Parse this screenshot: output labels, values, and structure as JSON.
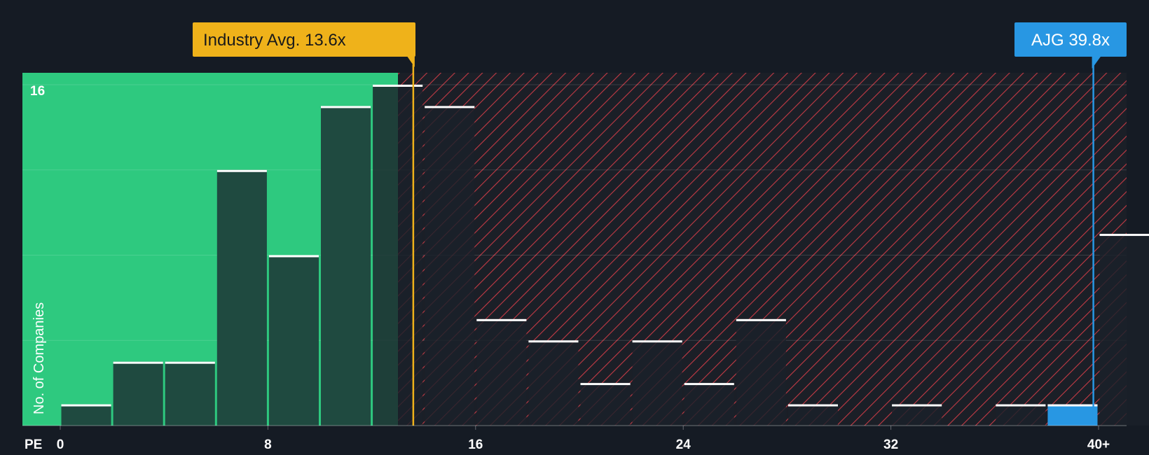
{
  "chart_data": {
    "type": "bar",
    "title": "",
    "xlabel": "PE",
    "ylabel": "No. of Companies",
    "x_tick_labels": [
      "0",
      "8",
      "16",
      "24",
      "32",
      "40+"
    ],
    "x_tick_values": [
      0,
      8,
      16,
      24,
      32,
      40
    ],
    "y_tick_labels": [
      "16"
    ],
    "y_tick_values": [
      16
    ],
    "xlim": [
      0,
      40
    ],
    "ylim": [
      0,
      16.6
    ],
    "bin_width": 2,
    "bins": [
      {
        "x0": 0,
        "x1": 2,
        "value": 1
      },
      {
        "x0": 2,
        "x1": 4,
        "value": 3
      },
      {
        "x0": 4,
        "x1": 6,
        "value": 3
      },
      {
        "x0": 6,
        "x1": 8,
        "value": 12
      },
      {
        "x0": 8,
        "x1": 10,
        "value": 8
      },
      {
        "x0": 10,
        "x1": 12,
        "value": 15
      },
      {
        "x0": 12,
        "x1": 14,
        "value": 16
      },
      {
        "x0": 14,
        "x1": 16,
        "value": 15
      },
      {
        "x0": 16,
        "x1": 18,
        "value": 5
      },
      {
        "x0": 18,
        "x1": 20,
        "value": 4
      },
      {
        "x0": 20,
        "x1": 22,
        "value": 2
      },
      {
        "x0": 22,
        "x1": 24,
        "value": 4
      },
      {
        "x0": 24,
        "x1": 26,
        "value": 2
      },
      {
        "x0": 26,
        "x1": 28,
        "value": 5
      },
      {
        "x0": 28,
        "x1": 30,
        "value": 1
      },
      {
        "x0": 30,
        "x1": 32,
        "value": 0
      },
      {
        "x0": 32,
        "x1": 34,
        "value": 1
      },
      {
        "x0": 34,
        "x1": 36,
        "value": 0
      },
      {
        "x0": 36,
        "x1": 38,
        "value": 1
      },
      {
        "x0": 38,
        "x1": 40,
        "value": 1,
        "highlight": true
      },
      {
        "x0": 40,
        "x1": 42,
        "value": 9
      }
    ],
    "industry_avg": {
      "value": 13.6,
      "label": "Industry Avg. 13.6x"
    },
    "company": {
      "value": 39.8,
      "label": "AJG 39.8x"
    },
    "colors": {
      "background": "#151b24",
      "fair_zone": "#2ec97f",
      "bar_in_fair_zone": "#1f4a40",
      "bar_overvalued": "#1b2129",
      "hatch_line": "#c33a45",
      "bar_cap": "#ffffff",
      "industry_avg": "#efb21a",
      "company": "#2897e3",
      "highlight_bar": "#2897e3"
    },
    "grid": true
  }
}
